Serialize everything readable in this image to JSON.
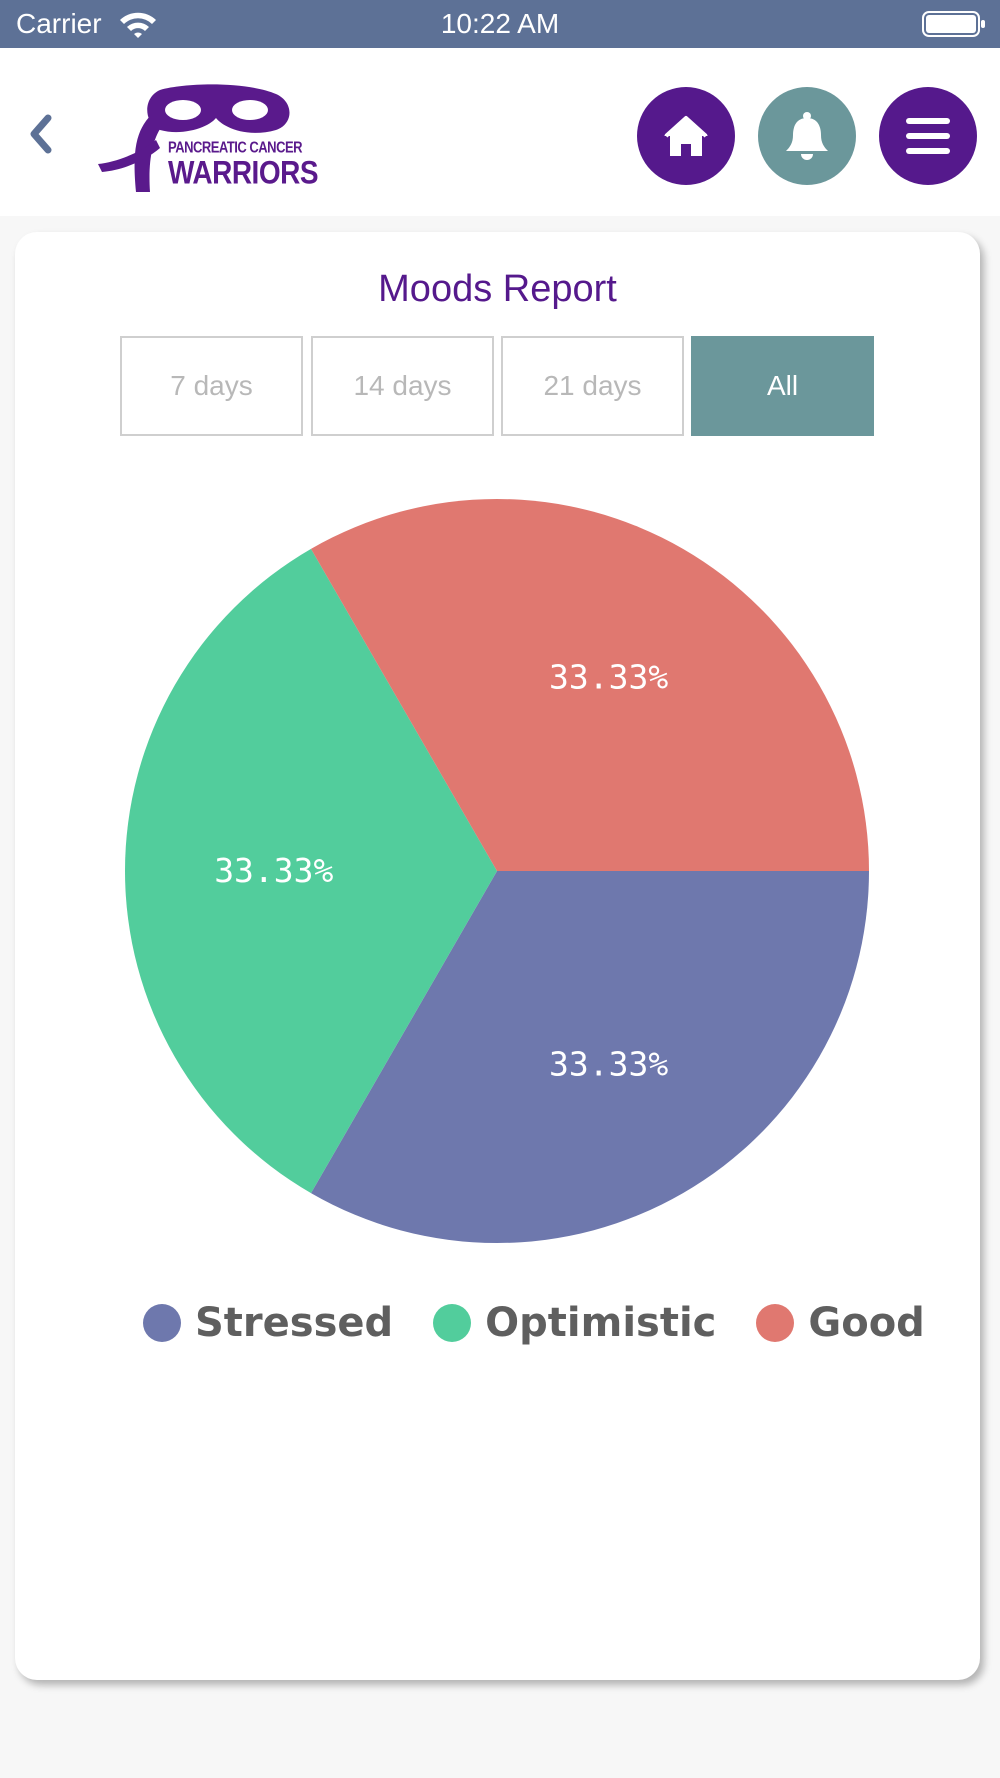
{
  "status_bar": {
    "carrier": "Carrier",
    "time": "10:22 AM"
  },
  "header": {
    "logo": {
      "line1": "PANCREATIC CANCER",
      "line2": "WARRIORS",
      "color": "#5a1a8c"
    },
    "icons": {
      "back": "chevron-left-icon",
      "home": "home-icon",
      "notifications": "bell-icon",
      "menu": "hamburger-menu-icon"
    },
    "colors": {
      "primary": "#55198c",
      "secondary": "#6b979b"
    }
  },
  "report": {
    "title": "Moods Report",
    "tabs": [
      {
        "label": "7 days",
        "selected": false
      },
      {
        "label": "14 days",
        "selected": false
      },
      {
        "label": "21 days",
        "selected": false
      },
      {
        "label": "All",
        "selected": true
      }
    ]
  },
  "chart_data": {
    "type": "pie",
    "title": "",
    "slices": [
      {
        "label": "Stressed",
        "value": 33.33,
        "display": "33.33%",
        "color": "#6e78ad"
      },
      {
        "label": "Optimistic",
        "value": 33.33,
        "display": "33.33%",
        "color": "#52cd9c"
      },
      {
        "label": "Good",
        "value": 33.33,
        "display": "33.33%",
        "color": "#e07870"
      }
    ],
    "legend_position": "bottom"
  }
}
